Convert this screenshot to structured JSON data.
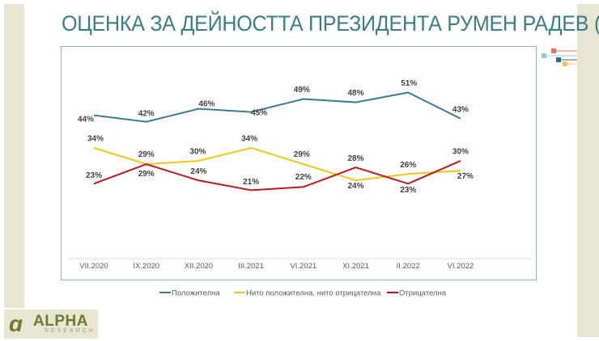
{
  "title": "ОЦЕНКА ЗА ДЕЙНОСТТА ПРЕЗИДЕНТА РУМЕН РАДЕВ (%)",
  "logo": {
    "name": "ALPHA",
    "sub": "RESEARCH"
  },
  "chart_data": {
    "type": "line",
    "title": "ОЦЕНКА ЗА ДЕЙНОСТТА ПРЕЗИДЕНТА РУМЕН РАДЕВ (%)",
    "categories": [
      "VII.2020",
      "IX.2020",
      "XII.2020",
      "III.2021",
      "VI.2021",
      "XI.2021",
      "II.2022",
      "VI.2022"
    ],
    "series": [
      {
        "name": "Положителна",
        "color": "#3b7d8c",
        "values": [
          44,
          42,
          46,
          45,
          49,
          48,
          51,
          43
        ]
      },
      {
        "name": "Нито положителна, нито отрицателна",
        "color": "#f5c518",
        "values": [
          34,
          29,
          30,
          34,
          29,
          24,
          26,
          27
        ]
      },
      {
        "name": "Отрицателна",
        "color": "#b81c1c",
        "values": [
          23,
          29,
          24,
          21,
          22,
          28,
          23,
          30
        ]
      }
    ],
    "ylim": [
      0,
      60
    ],
    "value_suffix": "%",
    "grid": false,
    "legend": "bottom"
  }
}
